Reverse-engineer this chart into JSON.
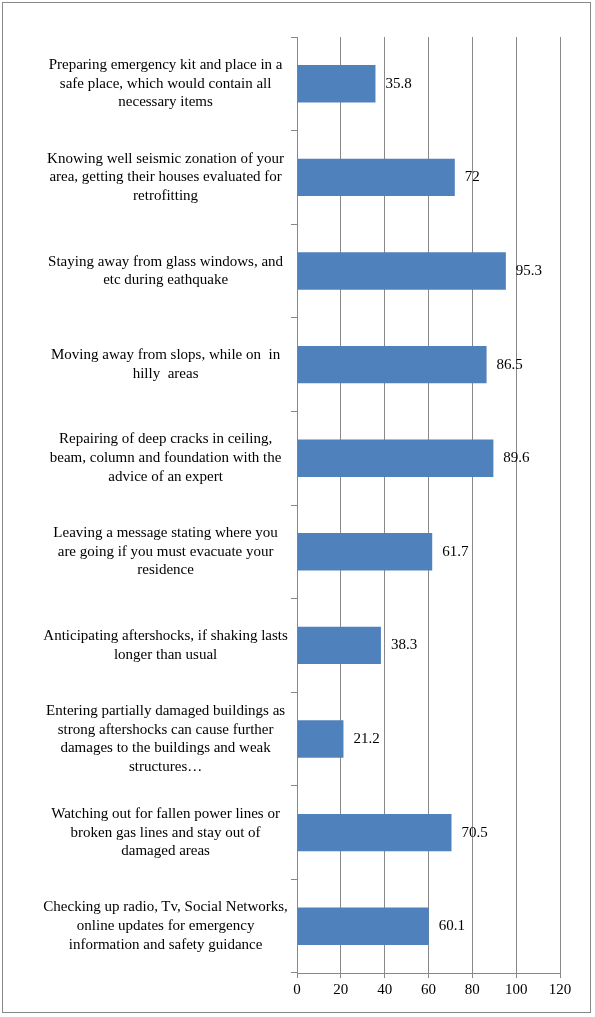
{
  "chart_data": {
    "type": "bar",
    "orientation": "horizontal",
    "categories": [
      "Preparing emergency kit and place in a safe place, which would contain all necessary items",
      "Knowing well seismic zonation of your area, getting their houses evaluated for retrofitting",
      "Staying away from glass windows, and etc during eathquake",
      "Moving away from slops, while on  in hilly  areas",
      "Repairing of deep cracks in ceiling, beam, column and foundation with the advice of an expert",
      "Leaving a message stating where you are going if you must evacuate your residence",
      "Anticipating aftershocks, if shaking lasts longer than usual",
      "Entering partially damaged buildings as strong aftershocks can cause further damages to the buildings and weak structures…",
      "Watching out for fallen power lines or broken gas lines and stay out of damaged areas",
      "Checking up radio, Tv, Social Networks, online updates for emergency information and safety guidance"
    ],
    "values": [
      35.8,
      72,
      95.3,
      86.5,
      89.6,
      61.7,
      38.3,
      21.2,
      70.5,
      60.1
    ],
    "color": "#4f81bd",
    "xlim": [
      0,
      120
    ],
    "xticks": [
      0,
      20,
      40,
      60,
      80,
      100,
      120
    ],
    "grid": "x",
    "data_labels": true,
    "legend": false
  }
}
